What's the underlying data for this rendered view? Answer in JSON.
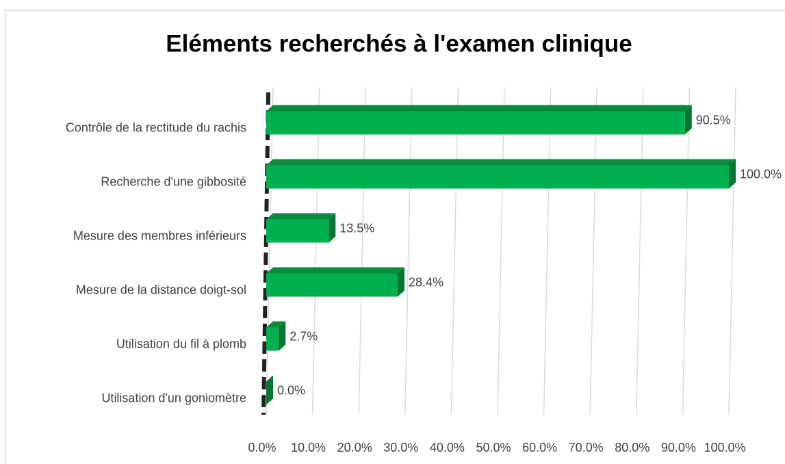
{
  "chart_data": {
    "type": "bar",
    "orientation": "horizontal",
    "title": "Eléments recherchés à l'examen clinique",
    "categories": [
      "Contrôle de la rectitude du rachis",
      "Recherche d'une gibbosité",
      "Mesure des membres inférieurs",
      "Mesure de la distance doigt-sol",
      "Utilisation du fil à plomb",
      "Utilisation d'un goniomètre"
    ],
    "values": [
      90.5,
      100,
      13.5,
      28.4,
      2.7,
      0
    ],
    "value_labels": [
      "90.5%",
      "100.0%",
      "13.5%",
      "28.4%",
      "2.7%",
      "0.0%"
    ],
    "color": "#00b050",
    "xlim": [
      0,
      100
    ],
    "xticks": [
      {
        "value": 0,
        "label": "0.0%"
      },
      {
        "value": 10,
        "label": "10.0%"
      },
      {
        "value": 20,
        "label": "20.0%"
      },
      {
        "value": 30,
        "label": "30.0%"
      },
      {
        "value": 40,
        "label": "40.0%"
      },
      {
        "value": 50,
        "label": "50.0%"
      },
      {
        "value": 60,
        "label": "60.0%"
      },
      {
        "value": 70,
        "label": "70.0%"
      },
      {
        "value": 80,
        "label": "80.0%"
      },
      {
        "value": 90,
        "label": "90.0%"
      },
      {
        "value": 100,
        "label": "100.0%"
      }
    ],
    "grid": true
  }
}
